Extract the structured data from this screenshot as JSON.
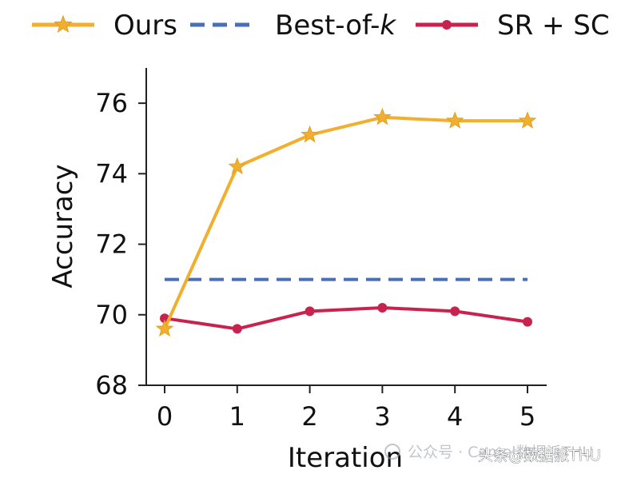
{
  "chart_data": {
    "type": "line",
    "title": "",
    "xlabel": "Iteration",
    "ylabel": "Accuracy",
    "x": [
      0,
      1,
      2,
      3,
      4,
      5
    ],
    "xlim": [
      -0.25,
      5.25
    ],
    "ylim": [
      68,
      77
    ],
    "x_ticks": [
      "0",
      "1",
      "2",
      "3",
      "4",
      "5"
    ],
    "y_ticks": [
      "68",
      "70",
      "72",
      "74",
      "76"
    ],
    "grid": false,
    "legend_position": "top",
    "series": [
      {
        "name": "Ours",
        "values": [
          69.6,
          74.2,
          75.1,
          75.6,
          75.5,
          75.5
        ],
        "color": "#F2AE2E",
        "marker": "star",
        "style": "solid"
      },
      {
        "name_prefix": "Best-of-",
        "name_var": "k",
        "values": [
          71.0,
          71.0,
          71.0,
          71.0,
          71.0,
          71.0
        ],
        "color": "#4A6FB5",
        "marker": "none",
        "style": "dashed"
      },
      {
        "name": "SR + SC",
        "values": [
          69.9,
          69.6,
          70.1,
          70.2,
          70.1,
          69.8
        ],
        "color": "#C8234E",
        "marker": "circle",
        "style": "solid"
      }
    ]
  },
  "watermark": {
    "text": "公众号 · Camel数据派THU",
    "overlay": "头条@数据派THU"
  }
}
